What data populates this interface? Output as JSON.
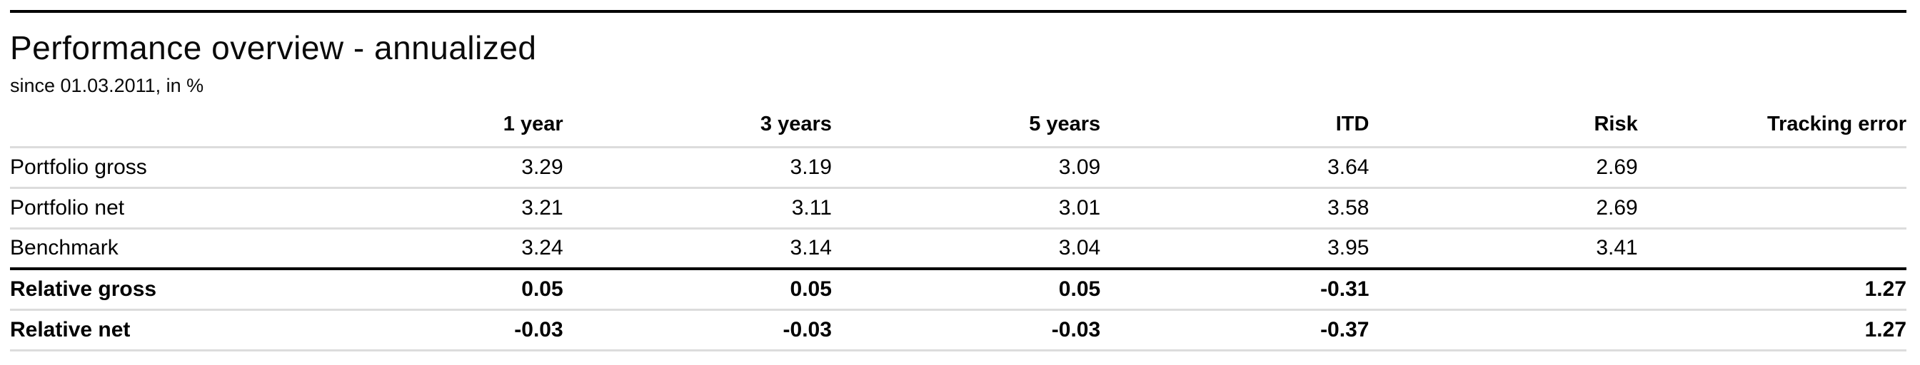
{
  "header": {
    "title": "Performance overview - annualized",
    "subtitle": "since 01.03.2011, in %"
  },
  "table": {
    "columns": [
      "",
      "1 year",
      "3 years",
      "5 years",
      "ITD",
      "Risk",
      "Tracking error"
    ],
    "rows": [
      {
        "label": "Portfolio gross",
        "values": [
          "3.29",
          "3.19",
          "3.09",
          "3.64",
          "2.69",
          ""
        ]
      },
      {
        "label": "Portfolio net",
        "values": [
          "3.21",
          "3.11",
          "3.01",
          "3.58",
          "2.69",
          ""
        ]
      },
      {
        "label": "Benchmark",
        "values": [
          "3.24",
          "3.14",
          "3.04",
          "3.95",
          "3.41",
          ""
        ]
      },
      {
        "label": "Relative gross",
        "values": [
          "0.05",
          "0.05",
          "0.05",
          "-0.31",
          "",
          "1.27"
        ]
      },
      {
        "label": "Relative net",
        "values": [
          "-0.03",
          "-0.03",
          "-0.03",
          "-0.37",
          "",
          "1.27"
        ]
      }
    ]
  },
  "colors": {
    "text": "#000000",
    "rule_thick": "#000000",
    "rule_light": "#dcdcdc",
    "background": "#ffffff"
  }
}
